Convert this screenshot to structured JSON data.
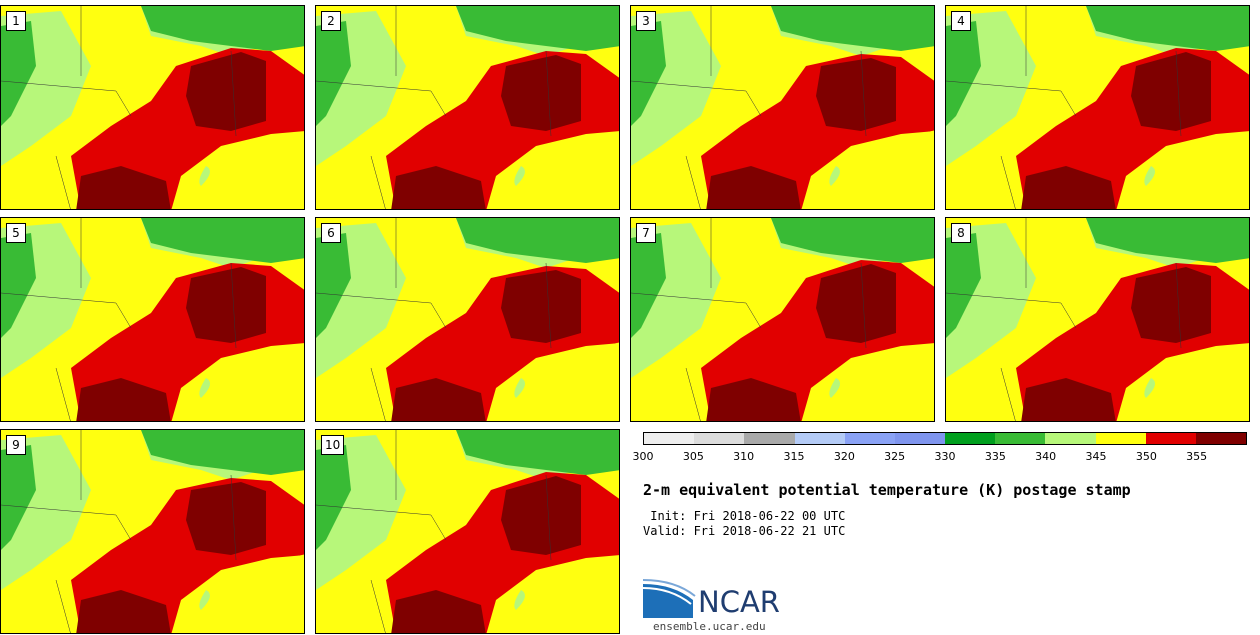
{
  "panels": [
    "1",
    "2",
    "3",
    "4",
    "5",
    "6",
    "7",
    "8",
    "9",
    "10"
  ],
  "colorbar": {
    "colors": [
      "#eeeeee",
      "#dcdcdc",
      "#a9a9a9",
      "#b4cbf6",
      "#8aa2f5",
      "#7f95ee",
      "#009f1e",
      "#39bb35",
      "#b7f77a",
      "#ffff10",
      "#e10000",
      "#7f0000"
    ],
    "ticks": [
      "300",
      "305",
      "310",
      "315",
      "320",
      "325",
      "330",
      "335",
      "340",
      "345",
      "350",
      "355"
    ]
  },
  "title": "2-m equivalent potential temperature (K) postage stamp",
  "init": " Init: Fri 2018-06-22 00 UTC",
  "valid": "Valid: Fri 2018-06-22 21 UTC",
  "logo": {
    "text": "NCAR",
    "site": "ensemble.ucar.edu"
  }
}
